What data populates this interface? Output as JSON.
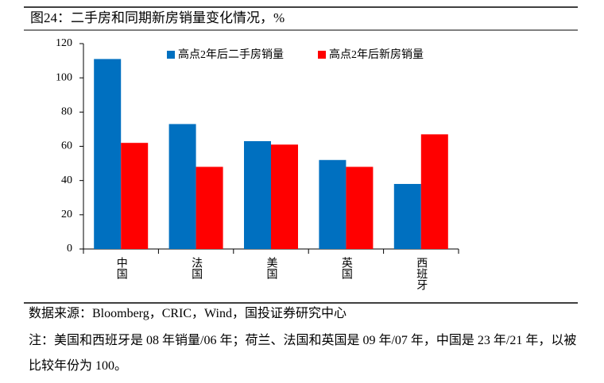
{
  "chart_data": {
    "type": "bar",
    "title": "图24：二手房和同期新房销量变化情况，%",
    "categories": [
      "中国",
      "法国",
      "美国",
      "英国",
      "西班牙"
    ],
    "series": [
      {
        "name": "高点2年后二手房销量",
        "color": "#0070c0",
        "values": [
          111,
          73,
          63,
          52,
          38
        ]
      },
      {
        "name": "高点2年后新房销量",
        "color": "#ff0000",
        "values": [
          62,
          48,
          61,
          48,
          67
        ]
      }
    ],
    "ylim": [
      0,
      120
    ],
    "yticks": [
      0,
      20,
      40,
      60,
      80,
      100,
      120
    ],
    "grid": false,
    "legend": "top",
    "source": "数据来源：Bloomberg，CRIC，Wind，国投证券研究中心",
    "note": "注：美国和西班牙是 08 年销量/06 年；荷兰、法国和英国是 09 年/07 年，中国是 23 年/21 年，以被比较年份为 100。"
  }
}
